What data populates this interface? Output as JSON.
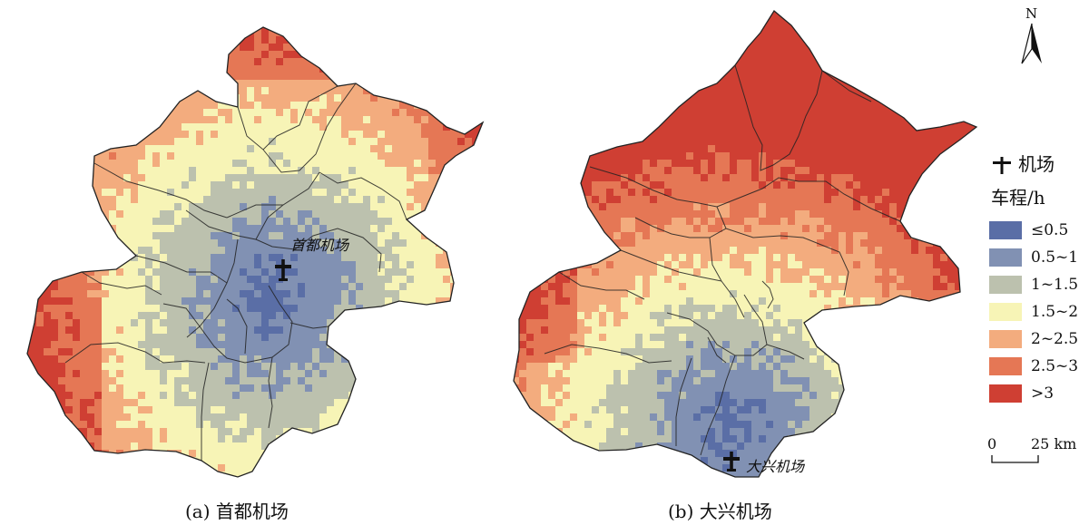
{
  "captions": {
    "left": "(a) 首都机场",
    "right": "(b) 大兴机场"
  },
  "maps": {
    "left_airport_label": "首都机场",
    "right_airport_label": "大兴机场"
  },
  "legend": {
    "airport_label": "机场",
    "title": "车程/h",
    "classes": [
      {
        "label": "≤0.5",
        "color": "#5a6ea6"
      },
      {
        "label": "0.5~1",
        "color": "#8191b3"
      },
      {
        "label": "1~1.5",
        "color": "#bcc1ae"
      },
      {
        "label": "1.5~2",
        "color": "#f7f4b6"
      },
      {
        "label": "2~2.5",
        "color": "#f3ac7e"
      },
      {
        "label": "2.5~3",
        "color": "#e57755"
      },
      {
        "label": ">3",
        "color": "#cf3f33"
      }
    ]
  },
  "north_arrow": {
    "label": "N"
  },
  "scale": {
    "start": "0",
    "end": "25 km"
  }
}
